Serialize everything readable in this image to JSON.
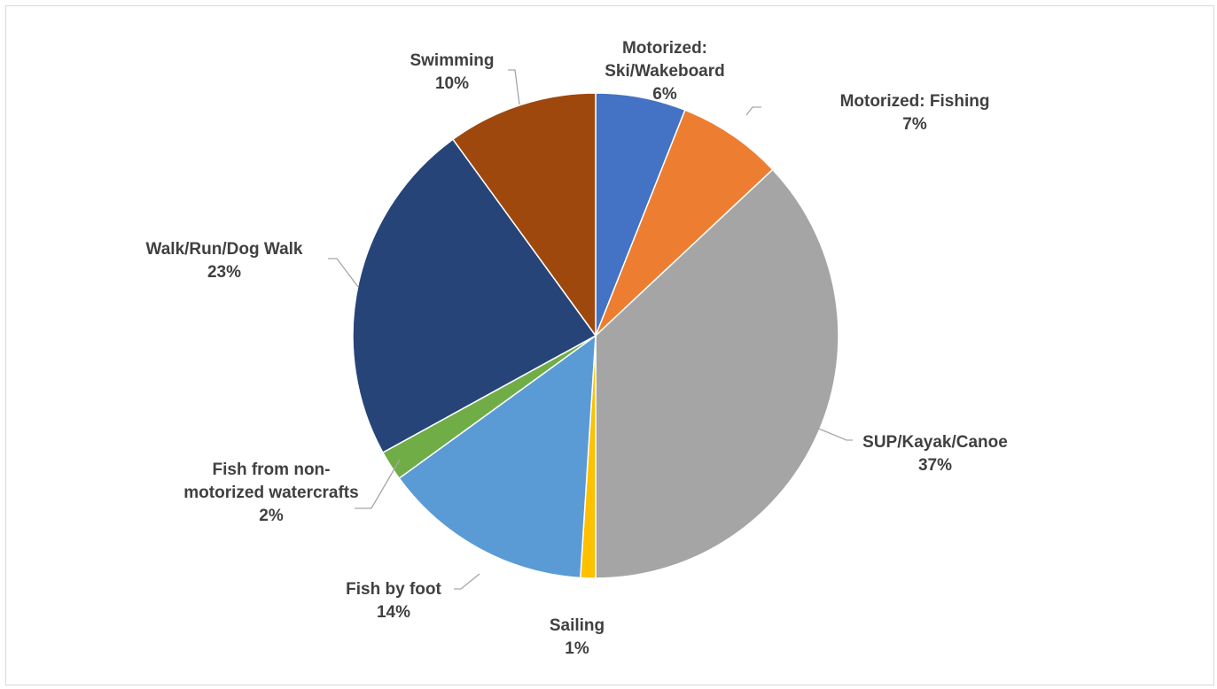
{
  "chart_data": {
    "type": "pie",
    "title": "",
    "slices": [
      {
        "name_lines": [
          "Motorized:",
          "Ski/Wakeboard"
        ],
        "value": 6,
        "pct_label": "6%",
        "color": "#4472c4"
      },
      {
        "name_lines": [
          "Motorized: Fishing"
        ],
        "value": 7,
        "pct_label": "7%",
        "color": "#ed7d31"
      },
      {
        "name_lines": [
          "SUP/Kayak/Canoe"
        ],
        "value": 37,
        "pct_label": "37%",
        "color": "#a5a5a5"
      },
      {
        "name_lines": [
          "Sailing"
        ],
        "value": 1,
        "pct_label": "1%",
        "color": "#ffc000"
      },
      {
        "name_lines": [
          "Fish by foot"
        ],
        "value": 14,
        "pct_label": "14%",
        "color": "#5b9bd5"
      },
      {
        "name_lines": [
          "Fish from non-",
          "motorized watercrafts"
        ],
        "value": 2,
        "pct_label": "2%",
        "color": "#70ad47"
      },
      {
        "name_lines": [
          "Walk/Run/Dog Walk"
        ],
        "value": 23,
        "pct_label": "23%",
        "color": "#264478"
      },
      {
        "name_lines": [
          "Swimming"
        ],
        "value": 10,
        "pct_label": "10%",
        "color": "#9e480e"
      }
    ],
    "start_angle_deg": 0,
    "direction": "clockwise",
    "data_labels": "category name and percentage, outside end with leader lines",
    "legend": "none"
  }
}
